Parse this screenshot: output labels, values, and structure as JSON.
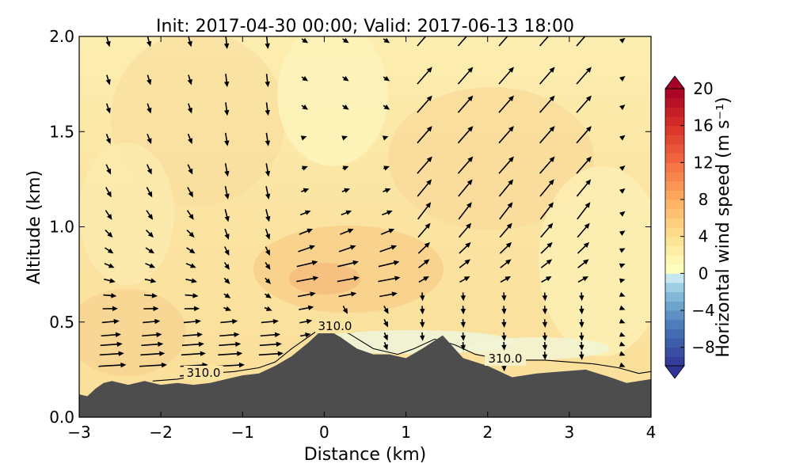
{
  "chart_data": {
    "type": "heatmap",
    "title": "Init: 2017-04-30 00:00; Valid: 2017-06-13 18:00",
    "xlabel": "Distance (km)",
    "ylabel": "Altitude (km)",
    "xlim": [
      -3,
      4
    ],
    "ylim": [
      0.0,
      2.0
    ],
    "xticks": [
      "−3",
      "−2",
      "−1",
      "0",
      "1",
      "2",
      "3",
      "4"
    ],
    "xtick_values": [
      -3,
      -2,
      -1,
      0,
      1,
      2,
      3,
      4
    ],
    "yticks": [
      "0.0",
      "0.5",
      "1.0",
      "1.5",
      "2.0"
    ],
    "ytick_values": [
      0.0,
      0.5,
      1.0,
      1.5,
      2.0
    ],
    "grid": false,
    "colorbar": {
      "label": "Horizontal wind speed (m s⁻¹)",
      "range": [
        -10,
        20
      ],
      "ticks": [
        "20",
        "16",
        "12",
        "8",
        "4",
        "0",
        "−4",
        "−8"
      ],
      "tick_values": [
        20,
        16,
        12,
        8,
        4,
        0,
        -4,
        -8
      ],
      "extend": "both",
      "colormap": "RdYlBu_r"
    },
    "terrain": {
      "color": "#4d4d4d",
      "x": [
        -3.0,
        -2.9,
        -2.8,
        -2.7,
        -2.6,
        -2.4,
        -2.2,
        -2.0,
        -1.8,
        -1.6,
        -1.4,
        -1.2,
        -1.0,
        -0.8,
        -0.6,
        -0.4,
        -0.2,
        0.0,
        0.2,
        0.4,
        0.6,
        0.8,
        1.0,
        1.2,
        1.45,
        1.7,
        2.0,
        2.3,
        2.6,
        2.9,
        3.2,
        3.5,
        3.7,
        4.0
      ],
      "y": [
        0.12,
        0.11,
        0.15,
        0.18,
        0.19,
        0.17,
        0.19,
        0.17,
        0.18,
        0.17,
        0.18,
        0.2,
        0.22,
        0.23,
        0.27,
        0.32,
        0.39,
        0.47,
        0.42,
        0.36,
        0.33,
        0.33,
        0.31,
        0.36,
        0.43,
        0.31,
        0.27,
        0.21,
        0.23,
        0.24,
        0.25,
        0.21,
        0.18,
        0.2
      ]
    },
    "isentrope": {
      "value": 310.0,
      "labels": [
        "310.0",
        "310.0",
        "310.0"
      ],
      "label_positions": [
        [
          -1.7,
          0.23
        ],
        [
          0.15,
          0.48
        ],
        [
          2.2,
          0.3
        ]
      ],
      "x": [
        -2.1,
        -1.8,
        -1.4,
        -1.1,
        -0.8,
        -0.6,
        -0.4,
        -0.2,
        0.0,
        0.3,
        0.6,
        0.9,
        1.1,
        1.35,
        1.6,
        1.85,
        2.1,
        2.4,
        2.7,
        3.0,
        3.3,
        3.6,
        3.85,
        4.0
      ],
      "y": [
        0.19,
        0.2,
        0.23,
        0.24,
        0.26,
        0.29,
        0.36,
        0.42,
        0.48,
        0.44,
        0.36,
        0.33,
        0.36,
        0.41,
        0.38,
        0.33,
        0.31,
        0.3,
        0.3,
        0.29,
        0.28,
        0.26,
        0.23,
        0.24
      ]
    },
    "wind_field": {
      "columns_x": [
        -2.65,
        -2.15,
        -1.65,
        -1.2,
        -0.7,
        -0.25,
        0.25,
        0.75,
        1.2,
        1.7,
        2.2,
        2.7,
        3.15,
        3.65
      ],
      "levels_y": [
        0.22,
        0.27,
        0.33,
        0.38,
        0.43,
        0.5,
        0.57,
        0.64,
        0.72,
        0.8,
        0.88,
        0.97,
        1.07,
        1.19,
        1.31,
        1.47,
        1.63,
        1.78,
        1.98
      ],
      "note": "u,v components in m/s, rows from low to high altitude"
    },
    "contours": {
      "description": "filled horizontal wind speed, mostly 0 to 5 m/s; weak negative values near terrain between 0 and 3 km"
    }
  }
}
